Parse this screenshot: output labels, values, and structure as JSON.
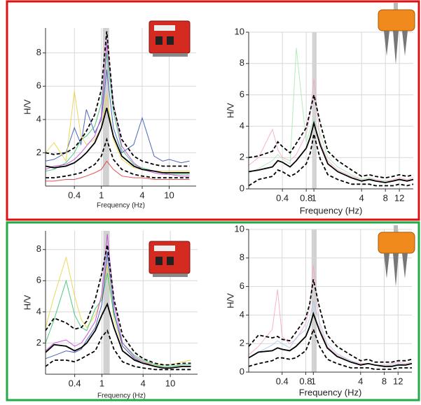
{
  "chart_data": [
    {
      "type": "line",
      "xscale": "log",
      "xlabel": "Frequency (Hz)",
      "ylabel": "H/V",
      "xlim": [
        0.15,
        25
      ],
      "ylim": [
        0,
        9.5
      ],
      "xticks": [
        0.4,
        1,
        4,
        10
      ],
      "yticks": [
        2,
        4,
        6,
        8
      ],
      "grid": true,
      "highlight_x": [
        1.05,
        1.3
      ],
      "x": [
        0.15,
        0.2,
        0.3,
        0.4,
        0.5,
        0.6,
        0.8,
        1,
        1.2,
        1.5,
        2,
        3,
        4,
        6,
        8,
        10,
        15,
        20
      ],
      "series": [
        {
          "color": "#2b4bb0",
          "values": [
            1.5,
            1.6,
            2.0,
            3.5,
            2.5,
            4.6,
            3.2,
            4.0,
            7.0,
            3.5,
            2.0,
            2.5,
            4.1,
            1.8,
            1.5,
            1.6,
            1.4,
            1.5
          ]
        },
        {
          "color": "#2fc06a",
          "values": [
            0.9,
            1.0,
            1.4,
            2.0,
            2.8,
            3.0,
            3.6,
            5.0,
            8.0,
            4.5,
            2.2,
            1.3,
            1.1,
            0.9,
            0.8,
            0.7,
            0.7,
            0.7
          ]
        },
        {
          "color": "#e8d23a",
          "values": [
            2.0,
            2.6,
            1.5,
            5.7,
            3.0,
            2.5,
            2.8,
            3.5,
            5.5,
            2.8,
            1.6,
            1.1,
            1.0,
            0.9,
            0.9,
            0.9,
            0.9,
            0.9
          ]
        },
        {
          "color": "#c23ad6",
          "values": [
            1.0,
            1.2,
            1.3,
            1.6,
            2.0,
            2.4,
            3.0,
            4.2,
            8.6,
            5.0,
            2.4,
            1.4,
            1.0,
            0.8,
            0.7,
            0.7,
            0.6,
            0.6
          ]
        },
        {
          "color": "#dd3333",
          "values": [
            0.3,
            0.3,
            0.4,
            0.4,
            0.5,
            0.6,
            0.8,
            1.0,
            1.5,
            1.0,
            0.6,
            0.5,
            0.5,
            0.4,
            0.4,
            0.4,
            0.4,
            0.4
          ]
        },
        {
          "color": "#000000",
          "dash": true,
          "values": [
            2.0,
            1.9,
            2.0,
            2.3,
            2.8,
            3.3,
            4.3,
            5.8,
            9.3,
            4.8,
            2.8,
            1.8,
            1.5,
            1.3,
            1.2,
            1.2,
            1.2,
            1.2
          ]
        },
        {
          "color": "#000000",
          "values": [
            1.2,
            1.1,
            1.2,
            1.4,
            1.7,
            2.0,
            2.6,
            3.5,
            4.7,
            3.0,
            1.8,
            1.2,
            1.0,
            0.9,
            0.8,
            0.8,
            0.8,
            0.8
          ]
        },
        {
          "color": "#000000",
          "dash": true,
          "values": [
            0.5,
            0.5,
            0.6,
            0.7,
            0.8,
            1.0,
            1.3,
            1.8,
            2.8,
            1.6,
            1.0,
            0.7,
            0.6,
            0.5,
            0.5,
            0.5,
            0.5,
            0.5
          ]
        }
      ]
    },
    {
      "type": "line",
      "xscale": "log",
      "xlabel": "Frequency (Hz)",
      "ylabel": "H/V",
      "xlim": [
        0.15,
        18
      ],
      "ylim": [
        0,
        10
      ],
      "xticks": [
        0.4,
        0.8,
        1,
        4,
        8,
        12
      ],
      "yticks": [
        0,
        2,
        4,
        6,
        8,
        10
      ],
      "grid": true,
      "highlight_x": [
        0.95,
        1.08
      ],
      "x": [
        0.15,
        0.2,
        0.3,
        0.35,
        0.4,
        0.5,
        0.6,
        0.8,
        0.9,
        1,
        1.2,
        1.5,
        2,
        3,
        4,
        5,
        6,
        8,
        10,
        12,
        15,
        18
      ],
      "series": [
        {
          "color": "#f4a6c8",
          "values": [
            1.5,
            2.0,
            3.8,
            2.5,
            2.0,
            1.8,
            2.2,
            3.5,
            4.8,
            7.0,
            3.0,
            1.8,
            1.2,
            0.8,
            0.6,
            0.7,
            0.6,
            0.5,
            0.6,
            0.7,
            0.6,
            0.7
          ]
        },
        {
          "color": "#a6e8b0",
          "values": [
            1.0,
            1.3,
            1.8,
            2.2,
            1.9,
            1.6,
            9.0,
            3.0,
            3.8,
            4.5,
            3.5,
            2.0,
            1.4,
            0.9,
            0.6,
            0.7,
            0.5,
            0.5,
            0.5,
            0.6,
            0.5,
            0.6
          ]
        },
        {
          "color": "#000000",
          "dash": true,
          "values": [
            2.0,
            2.1,
            2.4,
            3.0,
            2.7,
            2.3,
            2.9,
            3.9,
            5.0,
            6.0,
            4.2,
            2.4,
            1.8,
            1.2,
            0.8,
            0.9,
            0.8,
            0.7,
            0.8,
            0.9,
            0.8,
            0.9
          ]
        },
        {
          "color": "#000000",
          "values": [
            1.1,
            1.2,
            1.4,
            1.8,
            1.7,
            1.4,
            1.8,
            2.6,
            3.3,
            4.2,
            2.8,
            1.6,
            1.1,
            0.7,
            0.5,
            0.6,
            0.5,
            0.4,
            0.5,
            0.6,
            0.5,
            0.6
          ]
        },
        {
          "color": "#000000",
          "dash": true,
          "values": [
            0.2,
            0.6,
            0.8,
            1.2,
            1.1,
            0.8,
            1.0,
            1.6,
            2.3,
            3.5,
            1.9,
            0.9,
            0.6,
            0.3,
            0.3,
            0.3,
            0.2,
            0.2,
            0.2,
            0.3,
            0.2,
            0.3
          ]
        }
      ]
    },
    {
      "type": "line",
      "xscale": "log",
      "xlabel": "Frequency (Hz)",
      "ylabel": "H/V",
      "xlim": [
        0.15,
        25
      ],
      "ylim": [
        0,
        9.2
      ],
      "xticks": [
        0.4,
        1,
        4,
        10
      ],
      "yticks": [
        2,
        4,
        6,
        8
      ],
      "grid": true,
      "highlight_x": [
        1.05,
        1.3
      ],
      "x": [
        0.15,
        0.2,
        0.3,
        0.4,
        0.5,
        0.6,
        0.8,
        1,
        1.2,
        1.5,
        2,
        3,
        4,
        6,
        8,
        10,
        15,
        20
      ],
      "series": [
        {
          "color": "#e8d23a",
          "values": [
            3.0,
            5.0,
            7.5,
            5.0,
            3.5,
            3.0,
            3.8,
            5.0,
            7.0,
            3.5,
            1.8,
            1.0,
            0.8,
            0.6,
            0.6,
            0.6,
            0.8,
            0.9
          ]
        },
        {
          "color": "#2fc06a",
          "values": [
            2.0,
            3.5,
            6.0,
            3.8,
            3.0,
            2.8,
            4.2,
            4.8,
            6.5,
            3.8,
            2.0,
            1.2,
            0.9,
            0.6,
            0.5,
            0.5,
            0.6,
            0.6
          ]
        },
        {
          "color": "#2b4bb0",
          "values": [
            1.0,
            1.2,
            1.5,
            1.4,
            1.6,
            2.2,
            3.0,
            4.5,
            7.8,
            4.0,
            1.8,
            1.0,
            0.7,
            0.5,
            0.4,
            0.4,
            0.5,
            0.5
          ]
        },
        {
          "color": "#c23ad6",
          "values": [
            1.5,
            2.0,
            2.2,
            1.8,
            2.0,
            2.5,
            3.4,
            5.2,
            9.0,
            4.5,
            2.0,
            1.1,
            0.8,
            0.5,
            0.4,
            0.4,
            0.5,
            0.5
          ]
        },
        {
          "color": "#000000",
          "dash": true,
          "values": [
            2.8,
            3.6,
            3.3,
            2.9,
            3.0,
            3.4,
            4.8,
            6.5,
            8.3,
            4.8,
            2.5,
            1.4,
            1.0,
            0.7,
            0.6,
            0.6,
            0.7,
            0.7
          ]
        },
        {
          "color": "#000000",
          "values": [
            1.4,
            1.9,
            1.8,
            1.5,
            1.7,
            2.0,
            2.8,
            3.8,
            4.5,
            3.0,
            1.5,
            0.9,
            0.7,
            0.5,
            0.4,
            0.4,
            0.5,
            0.5
          ]
        },
        {
          "color": "#000000",
          "dash": true,
          "values": [
            0.5,
            0.9,
            0.9,
            0.8,
            1.0,
            1.2,
            1.5,
            2.4,
            2.8,
            1.6,
            0.8,
            0.5,
            0.4,
            0.3,
            0.3,
            0.3,
            0.3,
            0.3
          ]
        }
      ]
    },
    {
      "type": "line",
      "xscale": "log",
      "xlabel": "Frequency (Hz)",
      "ylabel": "H/V",
      "xlim": [
        0.15,
        18
      ],
      "ylim": [
        0,
        10
      ],
      "xticks": [
        0.4,
        0.8,
        1,
        4,
        8,
        12
      ],
      "yticks": [
        0,
        2,
        4,
        6,
        8,
        10
      ],
      "grid": true,
      "highlight_x": [
        0.95,
        1.1
      ],
      "x": [
        0.15,
        0.2,
        0.3,
        0.35,
        0.4,
        0.5,
        0.6,
        0.8,
        0.9,
        1,
        1.2,
        1.5,
        2,
        3,
        4,
        5,
        6,
        8,
        10,
        12,
        15,
        18
      ],
      "series": [
        {
          "color": "#f4a6c8",
          "values": [
            1.2,
            1.8,
            3.0,
            5.8,
            2.5,
            2.0,
            2.3,
            3.4,
            4.5,
            7.5,
            3.2,
            1.8,
            1.2,
            0.8,
            0.6,
            0.6,
            0.5,
            0.5,
            0.6,
            0.7,
            0.6,
            0.7
          ]
        },
        {
          "color": "#a8c8f0",
          "values": [
            1.0,
            1.4,
            1.9,
            2.2,
            2.0,
            1.7,
            2.4,
            3.0,
            3.8,
            5.0,
            3.5,
            2.0,
            1.3,
            0.8,
            0.5,
            0.6,
            0.5,
            0.4,
            0.5,
            0.6,
            0.5,
            0.6
          ]
        },
        {
          "color": "#000000",
          "dash": true,
          "values": [
            1.8,
            2.6,
            2.4,
            2.5,
            2.3,
            2.2,
            2.8,
            3.8,
            4.8,
            6.5,
            4.5,
            2.6,
            1.8,
            1.2,
            0.8,
            0.9,
            0.7,
            0.7,
            0.7,
            0.8,
            0.8,
            0.9
          ]
        },
        {
          "color": "#000000",
          "values": [
            1.0,
            1.4,
            1.5,
            1.7,
            1.6,
            1.5,
            1.8,
            2.5,
            3.2,
            4.1,
            2.9,
            1.7,
            1.1,
            0.7,
            0.5,
            0.6,
            0.5,
            0.4,
            0.4,
            0.5,
            0.5,
            0.6
          ]
        },
        {
          "color": "#000000",
          "dash": true,
          "values": [
            0.4,
            0.6,
            0.8,
            1.0,
            1.0,
            0.9,
            1.0,
            1.5,
            2.2,
            3.0,
            1.8,
            0.9,
            0.6,
            0.3,
            0.3,
            0.3,
            0.2,
            0.2,
            0.2,
            0.3,
            0.3,
            0.3
          ]
        }
      ]
    }
  ]
}
